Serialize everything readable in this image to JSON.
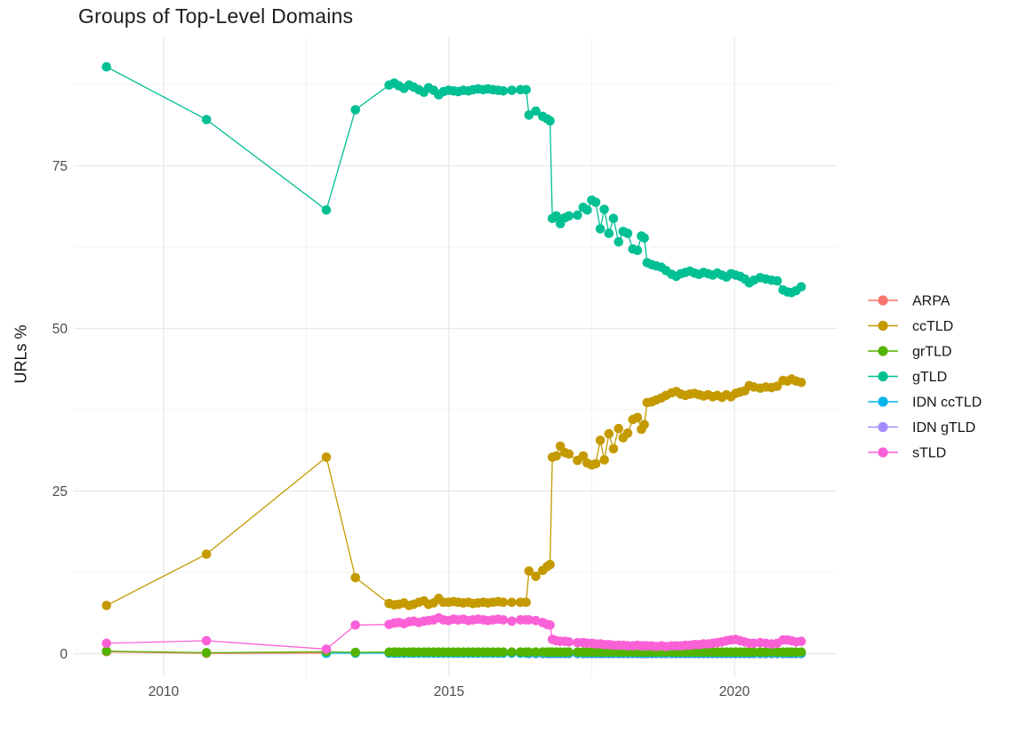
{
  "chart_data": {
    "type": "line",
    "title": "Groups of Top-Level Domains",
    "xlabel": "",
    "ylabel": "URLs %",
    "grid": "major+minor",
    "legend_position": "right",
    "x_ticks": [
      2010,
      2015,
      2020
    ],
    "x_minor_ticks": [
      2012.5,
      2017.5
    ],
    "y_ticks": [
      0,
      25,
      50,
      75
    ],
    "y_minor_ticks": [
      12.5,
      37.5,
      62.5,
      87.5
    ],
    "xlim": [
      2008.4,
      2021.8
    ],
    "ylim": [
      -3.7,
      94.3
    ],
    "legend_order": [
      "ARPA",
      "ccTLD",
      "grTLD",
      "gTLD",
      "IDN ccTLD",
      "IDN gTLD",
      "sTLD"
    ],
    "draw_order": [
      "ARPA",
      "IDN gTLD",
      "IDN ccTLD",
      "grTLD",
      "ccTLD",
      "gTLD",
      "sTLD"
    ],
    "dense_x": [
      2013.95,
      2014.04,
      2014.12,
      2014.21,
      2014.3,
      2014.38,
      2014.47,
      2014.56,
      2014.64,
      2014.73,
      2014.82,
      2014.9,
      2014.99,
      2015.08,
      2015.16,
      2015.25,
      2015.34,
      2015.42,
      2015.51,
      2015.6,
      2015.68,
      2015.77,
      2015.86,
      2015.95,
      2016.1,
      2016.25,
      2016.35,
      2016.4,
      2016.52,
      2016.64,
      2016.72,
      2016.77,
      2016.81,
      2016.88,
      2016.95,
      2017.03,
      2017.1,
      2017.25,
      2017.35,
      2017.42,
      2017.5,
      2017.57,
      2017.65,
      2017.72,
      2017.8,
      2017.88,
      2017.97,
      2018.05,
      2018.13,
      2018.22,
      2018.3,
      2018.37,
      2018.42,
      2018.47,
      2018.55,
      2018.63,
      2018.72,
      2018.8,
      2018.9,
      2018.98,
      2019.06,
      2019.14,
      2019.22,
      2019.3,
      2019.38,
      2019.46,
      2019.54,
      2019.62,
      2019.7,
      2019.78,
      2019.86,
      2019.94,
      2020.02,
      2020.1,
      2020.18,
      2020.26,
      2020.34,
      2020.45,
      2020.55,
      2020.65,
      2020.75,
      2020.85,
      2020.93,
      2021.0,
      2021.08,
      2021.17
    ],
    "series": [
      {
        "name": "ARPA",
        "color": "#F8766D",
        "prefix": [
          [
            2009.0,
            0.3
          ],
          [
            2010.75,
            0.05
          ],
          [
            2012.85,
            0.1
          ]
        ]
      },
      {
        "name": "ccTLD",
        "color": "#C49A00",
        "prefix": [
          [
            2009.0,
            7.4
          ],
          [
            2010.75,
            15.3
          ],
          [
            2012.85,
            30.2
          ],
          [
            2013.36,
            11.7
          ]
        ],
        "dense_y": [
          7.7,
          7.5,
          7.6,
          7.8,
          7.4,
          7.6,
          7.9,
          8.1,
          7.6,
          7.8,
          8.5,
          7.9,
          7.9,
          8.0,
          7.9,
          7.8,
          7.9,
          7.7,
          7.8,
          7.9,
          7.8,
          7.9,
          8.0,
          7.9,
          7.9,
          7.9,
          7.9,
          12.7,
          11.9,
          12.8,
          13.4,
          13.7,
          30.2,
          30.4,
          31.9,
          30.9,
          30.7,
          29.7,
          30.4,
          29.3,
          29.0,
          29.2,
          32.8,
          29.8,
          33.8,
          31.5,
          34.6,
          33.2,
          33.9,
          36.0,
          36.3,
          34.5,
          35.2,
          38.6,
          38.7,
          39.0,
          39.3,
          39.7,
          40.1,
          40.3,
          39.9,
          39.7,
          39.9,
          40.0,
          39.8,
          39.6,
          39.8,
          39.5,
          39.7,
          39.4,
          39.8,
          39.5,
          40.0,
          40.2,
          40.4,
          41.2,
          41.0,
          40.8,
          41.0,
          40.9,
          41.1,
          42.0,
          41.9,
          42.2,
          41.9,
          41.7
        ]
      },
      {
        "name": "grTLD",
        "color": "#53B400",
        "prefix": [
          [
            2009.0,
            0.4
          ],
          [
            2010.75,
            0.15
          ],
          [
            2012.85,
            0.3
          ],
          [
            2013.36,
            0.2
          ]
        ],
        "dense_y": 0.25
      },
      {
        "name": "gTLD",
        "color": "#00C094",
        "prefix": [
          [
            2009.0,
            90.2
          ],
          [
            2010.75,
            82.1
          ],
          [
            2012.85,
            68.2
          ],
          [
            2013.36,
            83.6
          ]
        ],
        "dense_y": [
          87.4,
          87.7,
          87.3,
          86.9,
          87.4,
          87.1,
          86.7,
          86.3,
          87.0,
          86.6,
          85.9,
          86.4,
          86.6,
          86.5,
          86.4,
          86.6,
          86.5,
          86.7,
          86.8,
          86.7,
          86.8,
          86.7,
          86.6,
          86.5,
          86.6,
          86.7,
          86.7,
          82.8,
          83.4,
          82.6,
          82.2,
          81.9,
          66.9,
          67.3,
          66.1,
          67.0,
          67.3,
          67.4,
          68.6,
          68.2,
          69.7,
          69.4,
          65.3,
          68.3,
          64.6,
          66.9,
          63.3,
          64.9,
          64.6,
          62.2,
          62.0,
          64.2,
          63.9,
          60.1,
          59.8,
          59.6,
          59.4,
          58.9,
          58.3,
          58.0,
          58.4,
          58.6,
          58.8,
          58.5,
          58.3,
          58.6,
          58.4,
          58.2,
          58.5,
          58.2,
          57.9,
          58.4,
          58.2,
          58.0,
          57.6,
          57.0,
          57.4,
          57.8,
          57.6,
          57.4,
          57.3,
          55.9,
          55.6,
          55.5,
          55.8,
          56.4
        ]
      },
      {
        "name": "IDN ccTLD",
        "color": "#00B6EB",
        "prefix": [
          [
            2012.85,
            0.05
          ],
          [
            2013.36,
            0.08
          ]
        ],
        "dense_y": 0.08
      },
      {
        "name": "IDN gTLD",
        "color": "#A58AFF",
        "prefix": [],
        "dense_from": 2016.4,
        "dense_y": 0.02
      },
      {
        "name": "sTLD",
        "color": "#FB61D7",
        "prefix": [
          [
            2009.0,
            1.6
          ],
          [
            2010.75,
            2.0
          ],
          [
            2012.85,
            0.7
          ],
          [
            2013.36,
            4.4
          ]
        ],
        "dense_y": [
          4.5,
          4.7,
          4.8,
          4.6,
          4.9,
          5.0,
          4.8,
          5.0,
          5.1,
          5.2,
          5.5,
          5.2,
          5.1,
          5.3,
          5.2,
          5.3,
          5.1,
          5.2,
          5.3,
          5.2,
          5.1,
          5.2,
          5.3,
          5.2,
          5.0,
          5.2,
          5.2,
          5.2,
          5.1,
          4.8,
          4.5,
          4.4,
          2.2,
          2.0,
          1.9,
          1.9,
          1.8,
          1.7,
          1.7,
          1.6,
          1.6,
          1.5,
          1.5,
          1.4,
          1.4,
          1.3,
          1.3,
          1.3,
          1.2,
          1.2,
          1.3,
          1.2,
          1.2,
          1.2,
          1.2,
          1.1,
          1.2,
          1.1,
          1.2,
          1.2,
          1.2,
          1.3,
          1.3,
          1.4,
          1.4,
          1.5,
          1.5,
          1.6,
          1.7,
          1.8,
          2.0,
          2.1,
          2.2,
          2.0,
          1.8,
          1.6,
          1.6,
          1.7,
          1.6,
          1.5,
          1.6,
          2.1,
          2.1,
          2.0,
          1.8,
          1.9
        ]
      }
    ],
    "style": {
      "major_grid_color": "#e7e7e7",
      "minor_grid_color": "#f3f3f3",
      "tick_label_color": "#4d4d4d",
      "point_radius": 5.3,
      "line_width": 1.3
    }
  }
}
